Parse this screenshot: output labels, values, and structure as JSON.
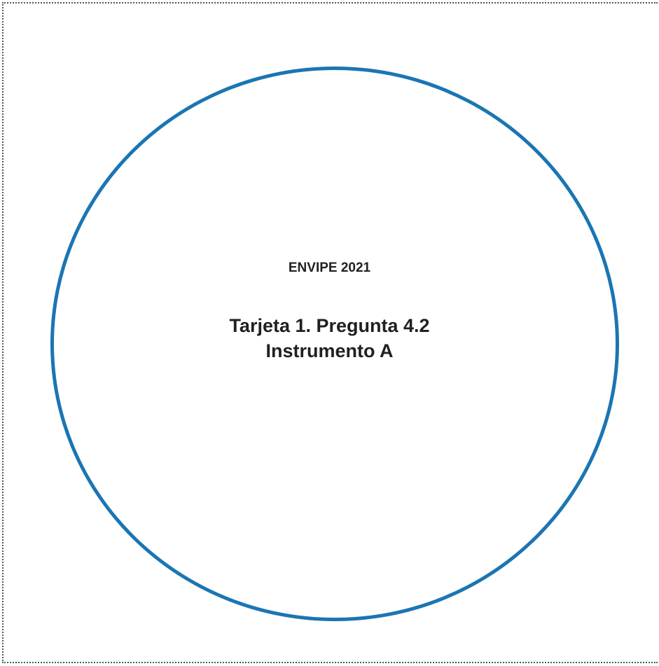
{
  "card": {
    "survey": "ENVIPE 2021",
    "title_line1": "Tarjeta 1. Pregunta 4.2",
    "title_line2": "Instrumento A"
  },
  "colors": {
    "circle": "#1b75b3",
    "text": "#231f20",
    "border": "#555555"
  }
}
